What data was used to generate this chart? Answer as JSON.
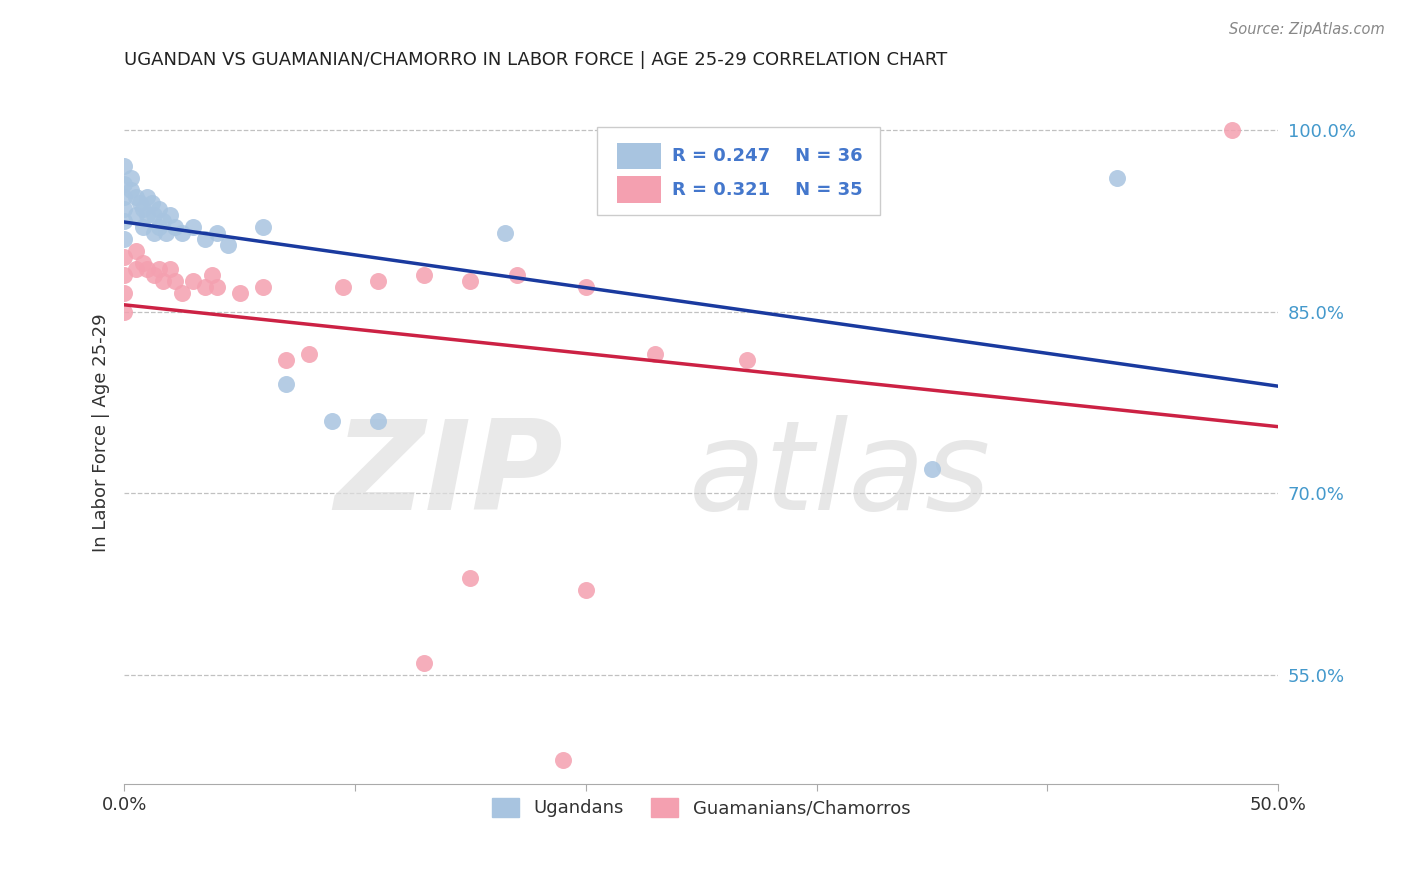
{
  "title": "UGANDAN VS GUAMANIAN/CHAMORRO IN LABOR FORCE | AGE 25-29 CORRELATION CHART",
  "source": "Source: ZipAtlas.com",
  "ylabel": "In Labor Force | Age 25-29",
  "xlim": [
    0.0,
    0.5
  ],
  "ylim": [
    0.46,
    1.04
  ],
  "xticks": [
    0.0,
    0.1,
    0.2,
    0.3,
    0.4,
    0.5
  ],
  "xticklabels": [
    "0.0%",
    "",
    "",
    "",
    "",
    "50.0%"
  ],
  "yticks": [
    0.55,
    0.7,
    0.85,
    1.0
  ],
  "yticklabels": [
    "55.0%",
    "70.0%",
    "85.0%",
    "100.0%"
  ],
  "ugandan_x": [
    0.0,
    0.0,
    0.0,
    0.0,
    0.0,
    0.0,
    0.003,
    0.003,
    0.005,
    0.005,
    0.007,
    0.008,
    0.008,
    0.01,
    0.01,
    0.012,
    0.013,
    0.013,
    0.015,
    0.015,
    0.017,
    0.018,
    0.02,
    0.022,
    0.025,
    0.03,
    0.035,
    0.04,
    0.045,
    0.06,
    0.07,
    0.09,
    0.11,
    0.165,
    0.35,
    0.43
  ],
  "ugandan_y": [
    0.97,
    0.955,
    0.945,
    0.935,
    0.925,
    0.91,
    0.96,
    0.95,
    0.945,
    0.93,
    0.94,
    0.935,
    0.92,
    0.945,
    0.93,
    0.94,
    0.93,
    0.915,
    0.935,
    0.92,
    0.925,
    0.915,
    0.93,
    0.92,
    0.915,
    0.92,
    0.91,
    0.915,
    0.905,
    0.92,
    0.79,
    0.76,
    0.76,
    0.915,
    0.72,
    0.96
  ],
  "chamorro_x": [
    0.0,
    0.0,
    0.0,
    0.0,
    0.005,
    0.005,
    0.008,
    0.01,
    0.013,
    0.015,
    0.017,
    0.02,
    0.022,
    0.025,
    0.03,
    0.035,
    0.038,
    0.04,
    0.05,
    0.06,
    0.07,
    0.08,
    0.095,
    0.11,
    0.13,
    0.15,
    0.17,
    0.2,
    0.23,
    0.27,
    0.15,
    0.2,
    0.13,
    0.19,
    0.48
  ],
  "chamorro_y": [
    0.895,
    0.88,
    0.865,
    0.85,
    0.9,
    0.885,
    0.89,
    0.885,
    0.88,
    0.885,
    0.875,
    0.885,
    0.875,
    0.865,
    0.875,
    0.87,
    0.88,
    0.87,
    0.865,
    0.87,
    0.81,
    0.815,
    0.87,
    0.875,
    0.88,
    0.875,
    0.88,
    0.87,
    0.815,
    0.81,
    0.63,
    0.62,
    0.56,
    0.48,
    1.0
  ],
  "ugandan_color": "#a8c4e0",
  "chamorro_color": "#f4a0b0",
  "ugandan_line_color": "#1a3a9f",
  "chamorro_line_color": "#cc2244",
  "R_ugandan": 0.247,
  "N_ugandan": 36,
  "R_chamorro": 0.321,
  "N_chamorro": 35,
  "legend_labels": [
    "Ugandans",
    "Guamanians/Chamorros"
  ],
  "background_color": "#ffffff",
  "grid_color": "#bbbbbb",
  "title_color": "#222222",
  "label_color": "#333333",
  "tick_color_y": "#4499cc",
  "tick_color_x": "#333333",
  "source_color": "#888888"
}
